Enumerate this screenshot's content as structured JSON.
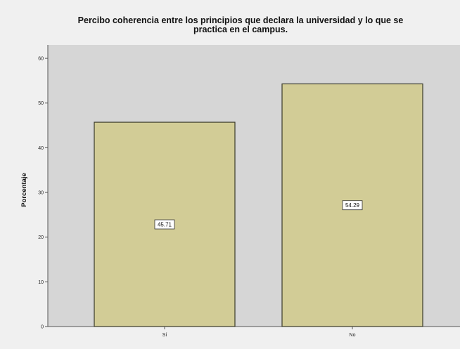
{
  "chart_data": {
    "type": "bar",
    "title_line1": "Percibo coherencia entre los principios que declara la universidad y lo que se",
    "title_line2": "practica en el campus.",
    "xlabel": "",
    "ylabel": "Porcentaje",
    "categories": [
      "Sí",
      "No"
    ],
    "values": [
      45.71,
      54.29
    ],
    "data_labels": [
      "45.71",
      "54.29"
    ],
    "yticks": [
      "0",
      "10",
      "20",
      "30",
      "40",
      "50",
      "60"
    ],
    "ylim": [
      0,
      63
    ],
    "grid": false,
    "colors": {
      "plot_background": "#d6d6d6",
      "bar_fill": "#d2cc96",
      "bar_stroke": "#3a3a2a",
      "page_background": "#f0f0f0"
    }
  }
}
